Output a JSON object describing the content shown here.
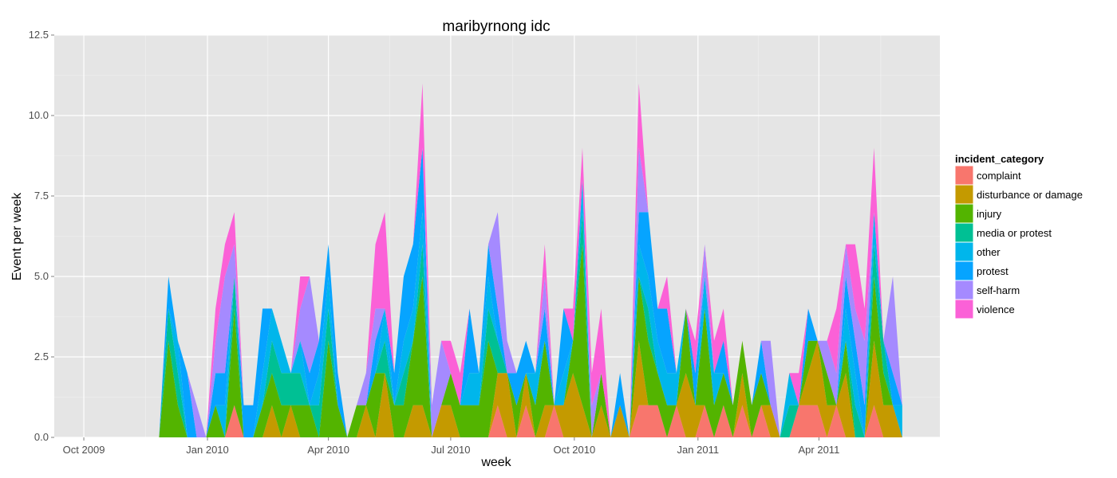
{
  "chart_data": {
    "type": "area",
    "stacked": true,
    "title": "maribyrnong idc",
    "xlabel": "week",
    "ylabel": "Event per week",
    "ylim": [
      0,
      12.5
    ],
    "xlim": [
      "2009-09-09",
      "2011-06-30"
    ],
    "x_ticks": [
      {
        "date": "2009-10-01",
        "label": "Oct 2009"
      },
      {
        "date": "2010-01-01",
        "label": "Jan 2010"
      },
      {
        "date": "2010-04-01",
        "label": "Apr 2010"
      },
      {
        "date": "2010-07-01",
        "label": "Jul 2010"
      },
      {
        "date": "2010-10-01",
        "label": "Oct 2010"
      },
      {
        "date": "2011-01-01",
        "label": "Jan 2011"
      },
      {
        "date": "2011-04-01",
        "label": "Apr 2011"
      }
    ],
    "y_ticks": [
      {
        "value": 0,
        "label": "0.0"
      },
      {
        "value": 2.5,
        "label": "2.5"
      },
      {
        "value": 5,
        "label": "5.0"
      },
      {
        "value": 7.5,
        "label": "7.5"
      },
      {
        "value": 10,
        "label": "10.0"
      },
      {
        "value": 12.5,
        "label": "12.5"
      }
    ],
    "grid": true,
    "legend": {
      "title": "incident_category",
      "position": "right"
    },
    "x": [
      "2009-11-26",
      "2009-12-03",
      "2009-12-10",
      "2009-12-17",
      "2009-12-24",
      "2009-12-31",
      "2010-01-07",
      "2010-01-14",
      "2010-01-21",
      "2010-01-28",
      "2010-02-04",
      "2010-02-11",
      "2010-02-18",
      "2010-02-25",
      "2010-03-04",
      "2010-03-11",
      "2010-03-18",
      "2010-03-25",
      "2010-04-01",
      "2010-04-08",
      "2010-04-15",
      "2010-04-22",
      "2010-04-29",
      "2010-05-06",
      "2010-05-13",
      "2010-05-20",
      "2010-05-27",
      "2010-06-03",
      "2010-06-10",
      "2010-06-17",
      "2010-06-24",
      "2010-07-01",
      "2010-07-08",
      "2010-07-15",
      "2010-07-22",
      "2010-07-29",
      "2010-08-05",
      "2010-08-12",
      "2010-08-19",
      "2010-08-26",
      "2010-09-02",
      "2010-09-09",
      "2010-09-16",
      "2010-09-23",
      "2010-09-30",
      "2010-10-07",
      "2010-10-14",
      "2010-10-21",
      "2010-10-28",
      "2010-11-04",
      "2010-11-11",
      "2010-11-18",
      "2010-11-25",
      "2010-12-02",
      "2010-12-09",
      "2010-12-16",
      "2010-12-23",
      "2010-12-30",
      "2011-01-06",
      "2011-01-13",
      "2011-01-20",
      "2011-01-27",
      "2011-02-03",
      "2011-02-10",
      "2011-02-17",
      "2011-02-24",
      "2011-03-03",
      "2011-03-10",
      "2011-03-17",
      "2011-03-24",
      "2011-03-31",
      "2011-04-07",
      "2011-04-14",
      "2011-04-21",
      "2011-04-28",
      "2011-05-05",
      "2011-05-12",
      "2011-05-19",
      "2011-05-26",
      "2011-06-02"
    ],
    "series": [
      {
        "name": "complaint",
        "color": "#F8766D",
        "values": [
          0,
          0,
          0,
          0,
          0,
          0,
          0,
          0,
          1,
          0,
          0,
          0,
          0,
          0,
          0,
          0,
          0,
          0,
          0,
          0,
          0,
          0,
          0,
          0,
          0,
          0,
          0,
          0,
          0,
          0,
          0,
          0,
          0,
          0,
          0,
          0,
          1,
          0,
          0,
          1,
          0,
          0,
          1,
          0,
          0,
          0,
          0,
          0,
          0,
          0,
          0,
          1,
          1,
          1,
          0,
          1,
          0,
          0,
          1,
          0,
          1,
          0,
          1,
          0,
          1,
          0,
          0,
          0,
          1,
          1,
          1,
          0,
          1,
          0,
          0,
          0,
          1,
          0,
          0,
          0
        ]
      },
      {
        "name": "disturbance or damage",
        "color": "#C49A00",
        "values": [
          0,
          0,
          0,
          0,
          0,
          0,
          0,
          0,
          0,
          0,
          0,
          0,
          1,
          0,
          1,
          0,
          0,
          0,
          0,
          0,
          0,
          0,
          1,
          0,
          2,
          0,
          0,
          1,
          1,
          0,
          1,
          1,
          0,
          0,
          0,
          0,
          1,
          2,
          0,
          1,
          0,
          1,
          0,
          1,
          2,
          1,
          0,
          1,
          0,
          1,
          0,
          2,
          0,
          0,
          0,
          0,
          2,
          1,
          0,
          0,
          0,
          0,
          1,
          0,
          0,
          1,
          0,
          0,
          0,
          1,
          2,
          1,
          0,
          2,
          0,
          0,
          2,
          1,
          1,
          0
        ]
      },
      {
        "name": "injury",
        "color": "#53B400",
        "values": [
          0,
          3,
          1,
          0,
          0,
          0,
          1,
          0,
          3,
          0,
          0,
          1,
          1,
          1,
          0,
          1,
          1,
          0,
          3,
          1,
          0,
          1,
          0,
          2,
          0,
          1,
          1,
          2,
          4,
          0,
          0,
          1,
          1,
          1,
          1,
          3,
          0,
          0,
          1,
          0,
          1,
          2,
          0,
          0,
          1,
          5,
          0,
          1,
          0,
          0,
          0,
          2,
          2,
          1,
          1,
          0,
          2,
          0,
          3,
          1,
          1,
          1,
          1,
          1,
          1,
          0,
          0,
          0,
          0,
          1,
          0,
          1,
          0,
          1,
          0,
          0,
          2,
          1,
          0,
          0
        ]
      },
      {
        "name": "media or protest",
        "color": "#00C094",
        "values": [
          0,
          1,
          1,
          0,
          0,
          0,
          0,
          0,
          1,
          0,
          0,
          0,
          1,
          1,
          1,
          1,
          0,
          1,
          1,
          0,
          0,
          0,
          0,
          0,
          1,
          0,
          1,
          0,
          1,
          0,
          0,
          0,
          0,
          0,
          0,
          1,
          1,
          0,
          0,
          0,
          0,
          0,
          0,
          0,
          0,
          1,
          0,
          0,
          0,
          0,
          0,
          0,
          1,
          0,
          0,
          0,
          0,
          0,
          0,
          0,
          0,
          0,
          0,
          0,
          0,
          0,
          0,
          1,
          0,
          0,
          0,
          0,
          0,
          0,
          1,
          0,
          1,
          1,
          0,
          0
        ]
      },
      {
        "name": "other",
        "color": "#00B6EB",
        "values": [
          0,
          0,
          1,
          0,
          0,
          0,
          0,
          1,
          0,
          0,
          0,
          1,
          1,
          1,
          0,
          1,
          0,
          1,
          1,
          0,
          0,
          0,
          0,
          0,
          1,
          0,
          1,
          1,
          1,
          0,
          0,
          0,
          0,
          1,
          1,
          1,
          0,
          0,
          0,
          0,
          1,
          0,
          0,
          1,
          0,
          1,
          0,
          0,
          0,
          0,
          0,
          1,
          1,
          1,
          1,
          1,
          0,
          0,
          1,
          1,
          0,
          0,
          0,
          0,
          0,
          0,
          0,
          1,
          0,
          0,
          0,
          0,
          0,
          1,
          1,
          0,
          1,
          0,
          0,
          1
        ]
      },
      {
        "name": "protest",
        "color": "#06A4FF",
        "values": [
          0,
          1,
          0,
          2,
          0,
          0,
          1,
          1,
          0,
          1,
          1,
          2,
          0,
          0,
          0,
          0,
          1,
          1,
          1,
          1,
          0,
          0,
          0,
          1,
          0,
          1,
          2,
          2,
          2,
          0,
          0,
          0,
          0,
          2,
          0,
          1,
          1,
          0,
          1,
          1,
          0,
          1,
          0,
          2,
          0,
          0,
          0,
          0,
          0,
          1,
          0,
          1,
          2,
          1,
          2,
          0,
          0,
          1,
          0,
          0,
          1,
          0,
          0,
          0,
          1,
          0,
          0,
          0,
          0,
          1,
          0,
          0,
          0,
          1,
          1,
          1,
          0,
          0,
          1,
          0
        ]
      },
      {
        "name": "self-harm",
        "color": "#A58AFF",
        "values": [
          0,
          0,
          0,
          0,
          1,
          0,
          1,
          3,
          1,
          0,
          0,
          0,
          0,
          0,
          0,
          1,
          3,
          0,
          0,
          0,
          0,
          0,
          1,
          1,
          0,
          0,
          0,
          0,
          0,
          1,
          2,
          0,
          0,
          0,
          0,
          0,
          3,
          1,
          0,
          0,
          0,
          1,
          0,
          0,
          0,
          0,
          1,
          0,
          0,
          0,
          0,
          2,
          0,
          0,
          0,
          0,
          0,
          0,
          1,
          0,
          0,
          0,
          0,
          0,
          0,
          2,
          0,
          0,
          0,
          0,
          0,
          1,
          1,
          1,
          1,
          2,
          0,
          0,
          3,
          0
        ]
      },
      {
        "name": "violence",
        "color": "#FB61D7",
        "values": [
          0,
          0,
          0,
          0,
          0,
          0,
          1,
          1,
          1,
          0,
          0,
          0,
          0,
          0,
          0,
          1,
          0,
          0,
          0,
          0,
          0,
          0,
          0,
          2,
          3,
          0,
          0,
          0,
          2,
          0,
          0,
          1,
          1,
          0,
          0,
          0,
          0,
          0,
          0,
          0,
          0,
          1,
          0,
          0,
          1,
          1,
          1,
          2,
          0,
          0,
          0,
          2,
          0,
          0,
          1,
          0,
          0,
          1,
          0,
          1,
          1,
          0,
          0,
          0,
          0,
          0,
          0,
          0,
          1,
          0,
          0,
          0,
          2,
          0,
          2,
          1,
          2,
          0,
          0,
          0
        ]
      }
    ]
  }
}
